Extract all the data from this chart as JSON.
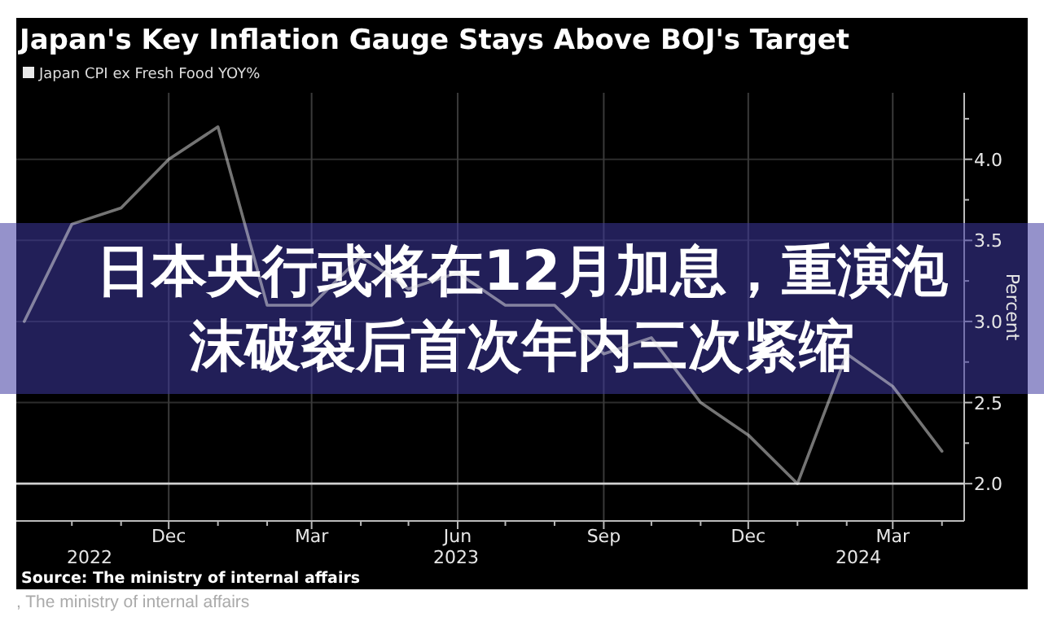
{
  "chart_data": {
    "type": "line",
    "title": "Japan's Key Inflation Gauge Stays Above BOJ's Target",
    "ylabel": "Percent",
    "x": [
      "2022-09",
      "2022-10",
      "2022-11",
      "2022-12",
      "2023-01",
      "2023-02",
      "2023-03",
      "2023-04",
      "2023-05",
      "2023-06",
      "2023-07",
      "2023-08",
      "2023-09",
      "2023-10",
      "2023-11",
      "2023-12",
      "2024-01",
      "2024-02",
      "2024-03",
      "2024-04"
    ],
    "series": [
      {
        "name": "Japan CPI ex Fresh Food YOY%",
        "color": "#e8e8e8",
        "values": [
          3.0,
          3.6,
          3.7,
          4.0,
          4.2,
          3.1,
          3.1,
          3.4,
          3.2,
          3.3,
          3.1,
          3.1,
          2.8,
          2.9,
          2.5,
          2.3,
          2.0,
          2.8,
          2.6,
          2.2
        ]
      }
    ],
    "xlim": [
      "2022-08-27",
      "2024-04-15"
    ],
    "xticks": [
      {
        "value": "2022-10",
        "label": null
      },
      {
        "value": "2022-11",
        "label": null
      },
      {
        "value": "2022-12",
        "label": "Dec"
      },
      {
        "value": "2023-01",
        "label": null
      },
      {
        "value": "2023-02",
        "label": null
      },
      {
        "value": "2023-03",
        "label": "Mar"
      },
      {
        "value": "2023-04",
        "label": null
      },
      {
        "value": "2023-05",
        "label": null
      },
      {
        "value": "2023-06",
        "label": "Jun"
      },
      {
        "value": "2023-07",
        "label": null
      },
      {
        "value": "2023-08",
        "label": null
      },
      {
        "value": "2023-09",
        "label": "Sep"
      },
      {
        "value": "2023-10",
        "label": null
      },
      {
        "value": "2023-11",
        "label": null
      },
      {
        "value": "2023-12",
        "label": "Dec"
      },
      {
        "value": "2024-01",
        "label": null
      },
      {
        "value": "2024-02",
        "label": null
      },
      {
        "value": "2024-03",
        "label": "Mar"
      },
      {
        "value": "2024-04",
        "label": null
      }
    ],
    "ylim": [
      1.77,
      4.41
    ],
    "yticks": [
      {
        "value": 2.0,
        "label": "2.0"
      },
      {
        "value": 2.25,
        "label": null
      },
      {
        "value": 2.5,
        "label": "2.5"
      },
      {
        "value": 2.75,
        "label": null
      },
      {
        "value": 3.0,
        "label": "3.0"
      },
      {
        "value": 3.25,
        "label": null
      },
      {
        "value": 3.5,
        "label": "3.5"
      },
      {
        "value": 3.75,
        "label": null
      },
      {
        "value": 4.0,
        "label": "4.0"
      },
      {
        "value": 4.25,
        "label": null
      }
    ],
    "ref_lines": [
      {
        "axis": "y",
        "value": 2.0,
        "color": "#d0d0d0"
      }
    ],
    "grid": true,
    "legend": "top left",
    "annotations": [
      "Source: The ministry of internal affairs",
      ", The ministry of internal affairs",
      "日本央行或将在12月加息，重演泡沫破裂后首次年内三次紧缩",
      "2022",
      "2023",
      "2024"
    ]
  }
}
